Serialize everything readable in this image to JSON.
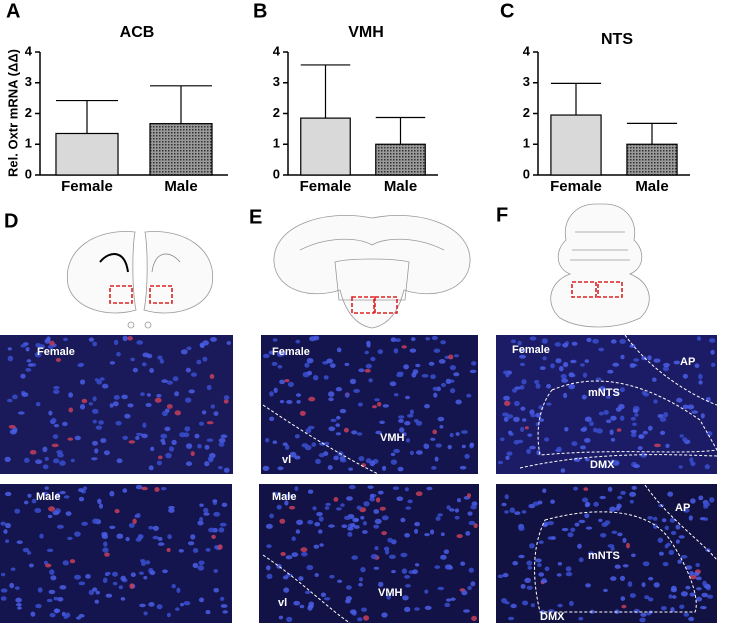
{
  "chart_data": [
    {
      "type": "bar",
      "panel": "A",
      "title": "ACB",
      "y_label": "Rel. Oxtr mRNA (ΔΔ)",
      "categories": [
        "Female",
        "Male"
      ],
      "values": [
        1.35,
        1.67
      ],
      "errors": [
        1.07,
        1.23
      ],
      "colors": [
        "#d9d9d9",
        "#5a5a5a"
      ],
      "ylim": [
        0,
        4
      ],
      "yticks": [
        0,
        1,
        2,
        3,
        4
      ]
    },
    {
      "type": "bar",
      "panel": "B",
      "title": "VMH",
      "categories": [
        "Female",
        "Male"
      ],
      "values": [
        1.85,
        1.0
      ],
      "errors": [
        1.73,
        0.87
      ],
      "colors": [
        "#d9d9d9",
        "#5a5a5a"
      ],
      "ylim": [
        0,
        4
      ],
      "yticks": [
        0,
        1,
        2,
        3,
        4
      ]
    },
    {
      "type": "bar",
      "panel": "C",
      "title": "NTS",
      "categories": [
        "Female",
        "Male"
      ],
      "values": [
        1.95,
        1.0
      ],
      "errors": [
        1.03,
        0.68
      ],
      "colors": [
        "#d9d9d9",
        "#5a5a5a"
      ],
      "ylim": [
        0,
        4
      ],
      "yticks": [
        0,
        1,
        2,
        3,
        4
      ]
    }
  ],
  "panels": [
    {
      "label": "D",
      "images": [
        {
          "texts": [
            "Female"
          ]
        },
        {
          "texts": [
            "Male"
          ]
        }
      ]
    },
    {
      "label": "E",
      "images": [
        {
          "texts": [
            "Female",
            "vl",
            "VMH"
          ]
        },
        {
          "texts": [
            "Male",
            "vl",
            "VMH"
          ]
        }
      ]
    },
    {
      "label": "F",
      "images": [
        {
          "texts": [
            "Female",
            "AP",
            "mNTS",
            "DMX"
          ]
        },
        {
          "texts": [
            "AP",
            "mNTS",
            "DMX"
          ]
        }
      ]
    }
  ]
}
